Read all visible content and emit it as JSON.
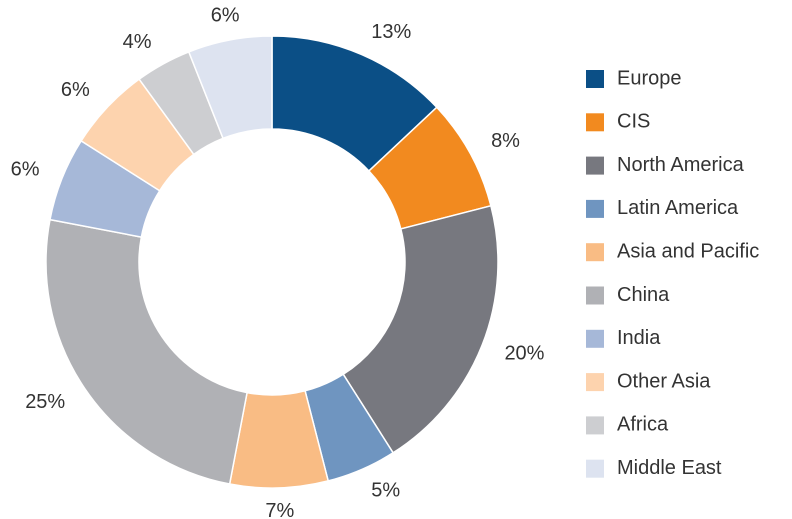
{
  "chart_data": {
    "type": "donut",
    "categories": [
      "Europe",
      "CIS",
      "North America",
      "Latin America",
      "Asia and Pacific",
      "China",
      "India",
      "Other Asia",
      "Africa",
      "Middle East"
    ],
    "values": [
      13,
      8,
      20,
      5,
      7,
      25,
      6,
      6,
      4,
      6
    ],
    "value_labels": [
      "13%",
      "8%",
      "20%",
      "5%",
      "7%",
      "25%",
      "6%",
      "6%",
      "4%",
      "6%"
    ],
    "colors": [
      "#0b4f86",
      "#f28a1f",
      "#77787f",
      "#6f95c0",
      "#f9bc84",
      "#b0b1b5",
      "#a6b8d8",
      "#fdd3ae",
      "#cdced1",
      "#dde3f0"
    ],
    "legend": "right"
  }
}
